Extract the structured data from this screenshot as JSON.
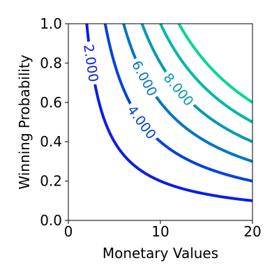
{
  "chart_data": {
    "type": "line",
    "subtype": "contour",
    "title": "",
    "xlabel": "Monetary Values",
    "ylabel": "Winning Probability",
    "xlim": [
      0,
      20
    ],
    "ylim": [
      0.0,
      1.0
    ],
    "xticks": [
      "0",
      "10",
      "20"
    ],
    "yticks": [
      "0.0",
      "0.2",
      "0.4",
      "0.6",
      "0.8",
      "1.0"
    ],
    "grid": false,
    "function": "z = x * y",
    "colormap": "winter",
    "series": [
      {
        "level": 2,
        "label": "2.000",
        "color": "#0a1ee6",
        "labeled": true
      },
      {
        "level": 4,
        "label": "4.000",
        "color": "#0044d8",
        "labeled": true
      },
      {
        "level": 6,
        "label": "6.000",
        "color": "#0075c4",
        "labeled": true
      },
      {
        "level": 8,
        "label": "8.000",
        "color": "#009ab2",
        "labeled": true
      },
      {
        "level": 10,
        "label": "",
        "color": "#00b8a4",
        "labeled": false
      },
      {
        "level": 12,
        "label": "",
        "color": "#00d893",
        "labeled": false
      }
    ]
  }
}
